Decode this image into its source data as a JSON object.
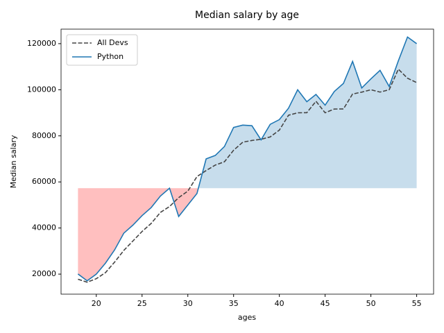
{
  "chart_data": {
    "type": "line",
    "title": "Median salary by age",
    "xlabel": "ages",
    "ylabel": "Median salary",
    "x": [
      18,
      19,
      20,
      21,
      22,
      23,
      24,
      25,
      26,
      27,
      28,
      29,
      30,
      31,
      32,
      33,
      34,
      35,
      36,
      37,
      38,
      39,
      40,
      41,
      42,
      43,
      44,
      45,
      46,
      47,
      48,
      49,
      50,
      51,
      52,
      53,
      54,
      55
    ],
    "series": [
      {
        "name": "All Devs",
        "color": "#444444",
        "dash": true,
        "values": [
          17784,
          16500,
          18012,
          20628,
          25206,
          30252,
          34368,
          38496,
          42000,
          46752,
          49320,
          53200,
          56000,
          62316,
          64928,
          67317,
          68748,
          73752,
          77232,
          78000,
          78508,
          79536,
          82488,
          88935,
          90000,
          90056,
          95000,
          90000,
          91633,
          91660,
          98150,
          98964,
          100000,
          98988,
          100000,
          108923,
          105000,
          103117
        ]
      },
      {
        "name": "Python",
        "color": "#1f77b4",
        "dash": false,
        "values": [
          20046,
          17100,
          20000,
          24744,
          30500,
          37732,
          41247,
          45372,
          48876,
          53850,
          57287,
          45000,
          50000,
          55000,
          70000,
          71496,
          75370,
          83640,
          84666,
          84392,
          78254,
          85000,
          87038,
          91991,
          100000,
          94796,
          97962,
          93302,
          99240,
          102736,
          112285,
          100771,
          104708,
          108423,
          101407,
          112542,
          122870,
          120000
        ]
      }
    ],
    "fill_series": 1,
    "fill_baseline": 57287,
    "fill_above_color": "#1f77b4",
    "fill_below_color": "#ff0000",
    "fill_alpha": 0.25,
    "xlim": [
      16.15,
      56.85
    ],
    "ylim": [
      11300,
      126300
    ],
    "xticks": [
      20,
      25,
      30,
      35,
      40,
      45,
      50,
      55
    ],
    "yticks": [
      20000,
      40000,
      60000,
      80000,
      100000,
      120000
    ],
    "legend": "upper left"
  }
}
